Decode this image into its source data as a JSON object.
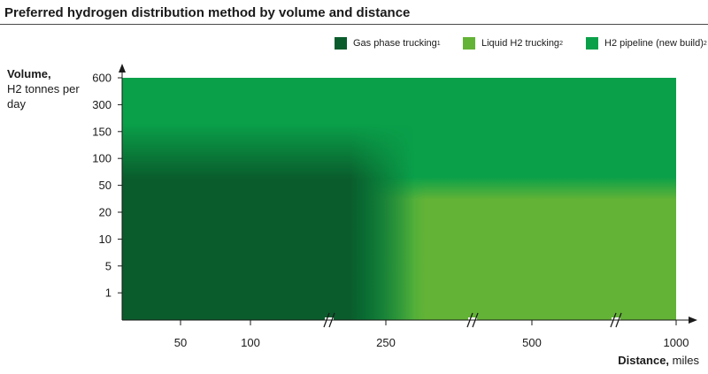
{
  "chart_data": {
    "type": "heatmap",
    "title": "Preferred hydrogen distribution method by volume and distance",
    "ylabel": {
      "main": "Volume,",
      "rest": "H2 tonnes per day"
    },
    "xlabel": {
      "main": "Distance,",
      "rest": " miles"
    },
    "y_ticks": [
      "600",
      "300",
      "150",
      "100",
      "50",
      "20",
      "10",
      "5",
      "1"
    ],
    "x_ticks": [
      "50",
      "100",
      "250",
      "500",
      "1000"
    ],
    "x_axis_breaks_after": [
      "100",
      "250",
      "500"
    ],
    "legend_placement": "top-right",
    "series": [
      {
        "name": "Gas phase trucking",
        "note": "1",
        "color": "#0a5c2c",
        "region": "distance up to about 250 miles, volume up to about 100 H2 tonnes per day"
      },
      {
        "name": "Liquid H2 trucking",
        "note": "2",
        "color": "#63b336",
        "region": "distance about 250 to 1000 miles, volume up to about 50 H2 tonnes per day"
      },
      {
        "name": "H2 pipeline (new build)",
        "note": "2",
        "color": "#0aa04a",
        "region": "volume above about 100 H2 tonnes per day at all distances, and above 50 beyond 250 miles"
      }
    ]
  }
}
